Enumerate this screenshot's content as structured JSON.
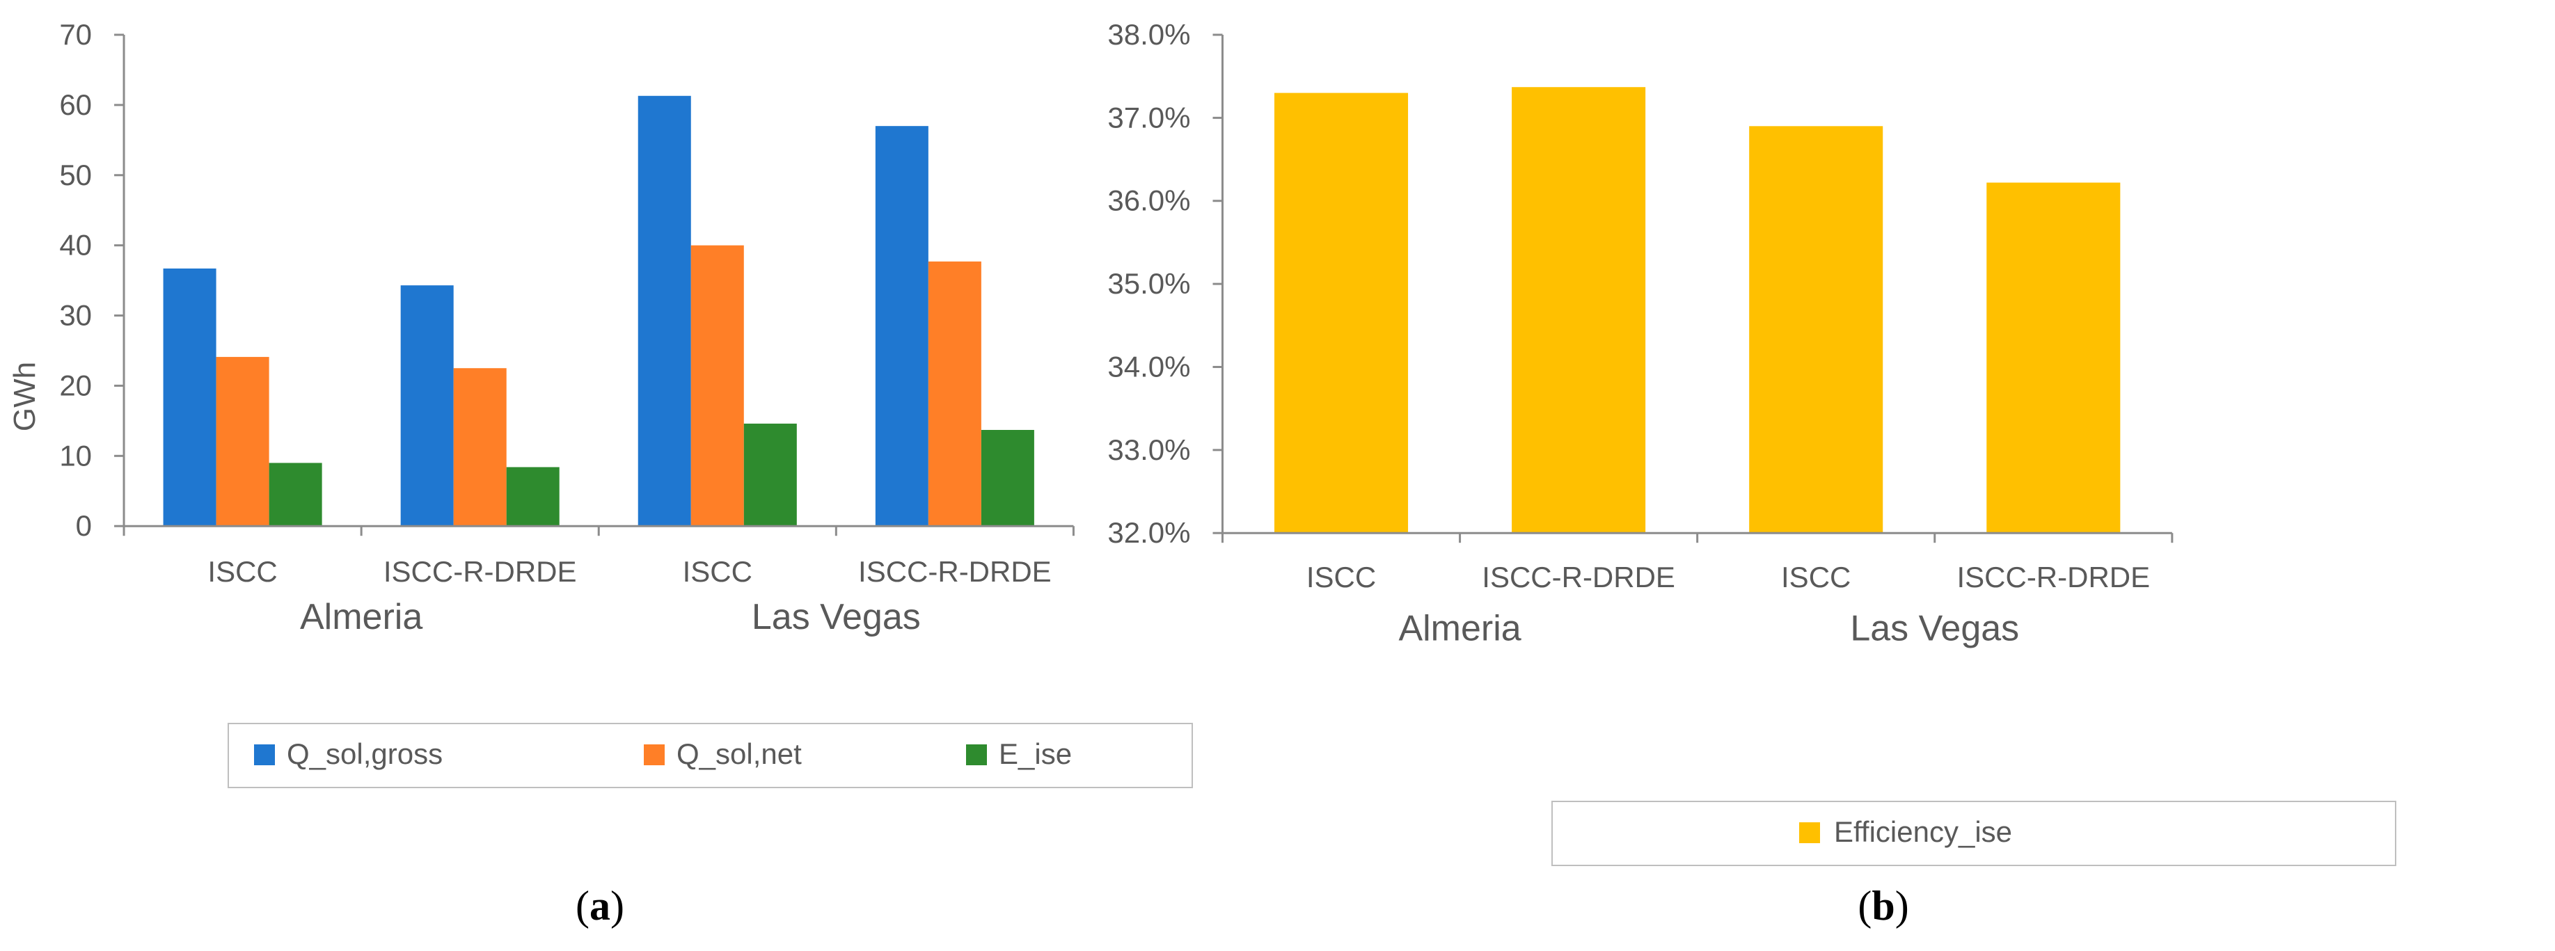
{
  "chart_data": [
    {
      "type": "bar",
      "panel": "(a)",
      "panel_letter": "a",
      "ylabel": "GWh",
      "ylim": [
        0,
        70
      ],
      "yticks": [
        "0",
        "10",
        "20",
        "30",
        "40",
        "50",
        "60",
        "70"
      ],
      "grid": false,
      "legend_position": "bottom",
      "categories": [
        "ISCC",
        "ISCC-R-DRDE",
        "ISCC",
        "ISCC-R-DRDE"
      ],
      "groups": [
        "Almeria",
        "Las Vegas"
      ],
      "series": [
        {
          "name": "Q_sol,gross",
          "color": "#1f77d0",
          "values": [
            36.7,
            34.3,
            61.3,
            57.0
          ]
        },
        {
          "name": "Q_sol,net",
          "color": "#ff7f27",
          "values": [
            24.1,
            22.5,
            40.0,
            37.7
          ]
        },
        {
          "name": "E_ise",
          "color": "#2e8b2e",
          "values": [
            9.0,
            8.4,
            14.6,
            13.7
          ]
        }
      ]
    },
    {
      "type": "bar",
      "panel": "(b)",
      "panel_letter": "b",
      "ylabel": "",
      "ylim": [
        32.0,
        38.0
      ],
      "yticks": [
        "32.0%",
        "33.0%",
        "34.0%",
        "35.0%",
        "36.0%",
        "37.0%",
        "38.0%"
      ],
      "grid": false,
      "legend_position": "bottom",
      "categories": [
        "ISCC",
        "ISCC-R-DRDE",
        "ISCC",
        "ISCC-R-DRDE"
      ],
      "groups": [
        "Almeria",
        "Las Vegas"
      ],
      "series": [
        {
          "name": "Efficiency_ise",
          "color": "#ffc000",
          "values": [
            37.3,
            37.37,
            36.9,
            36.22
          ]
        }
      ]
    }
  ]
}
